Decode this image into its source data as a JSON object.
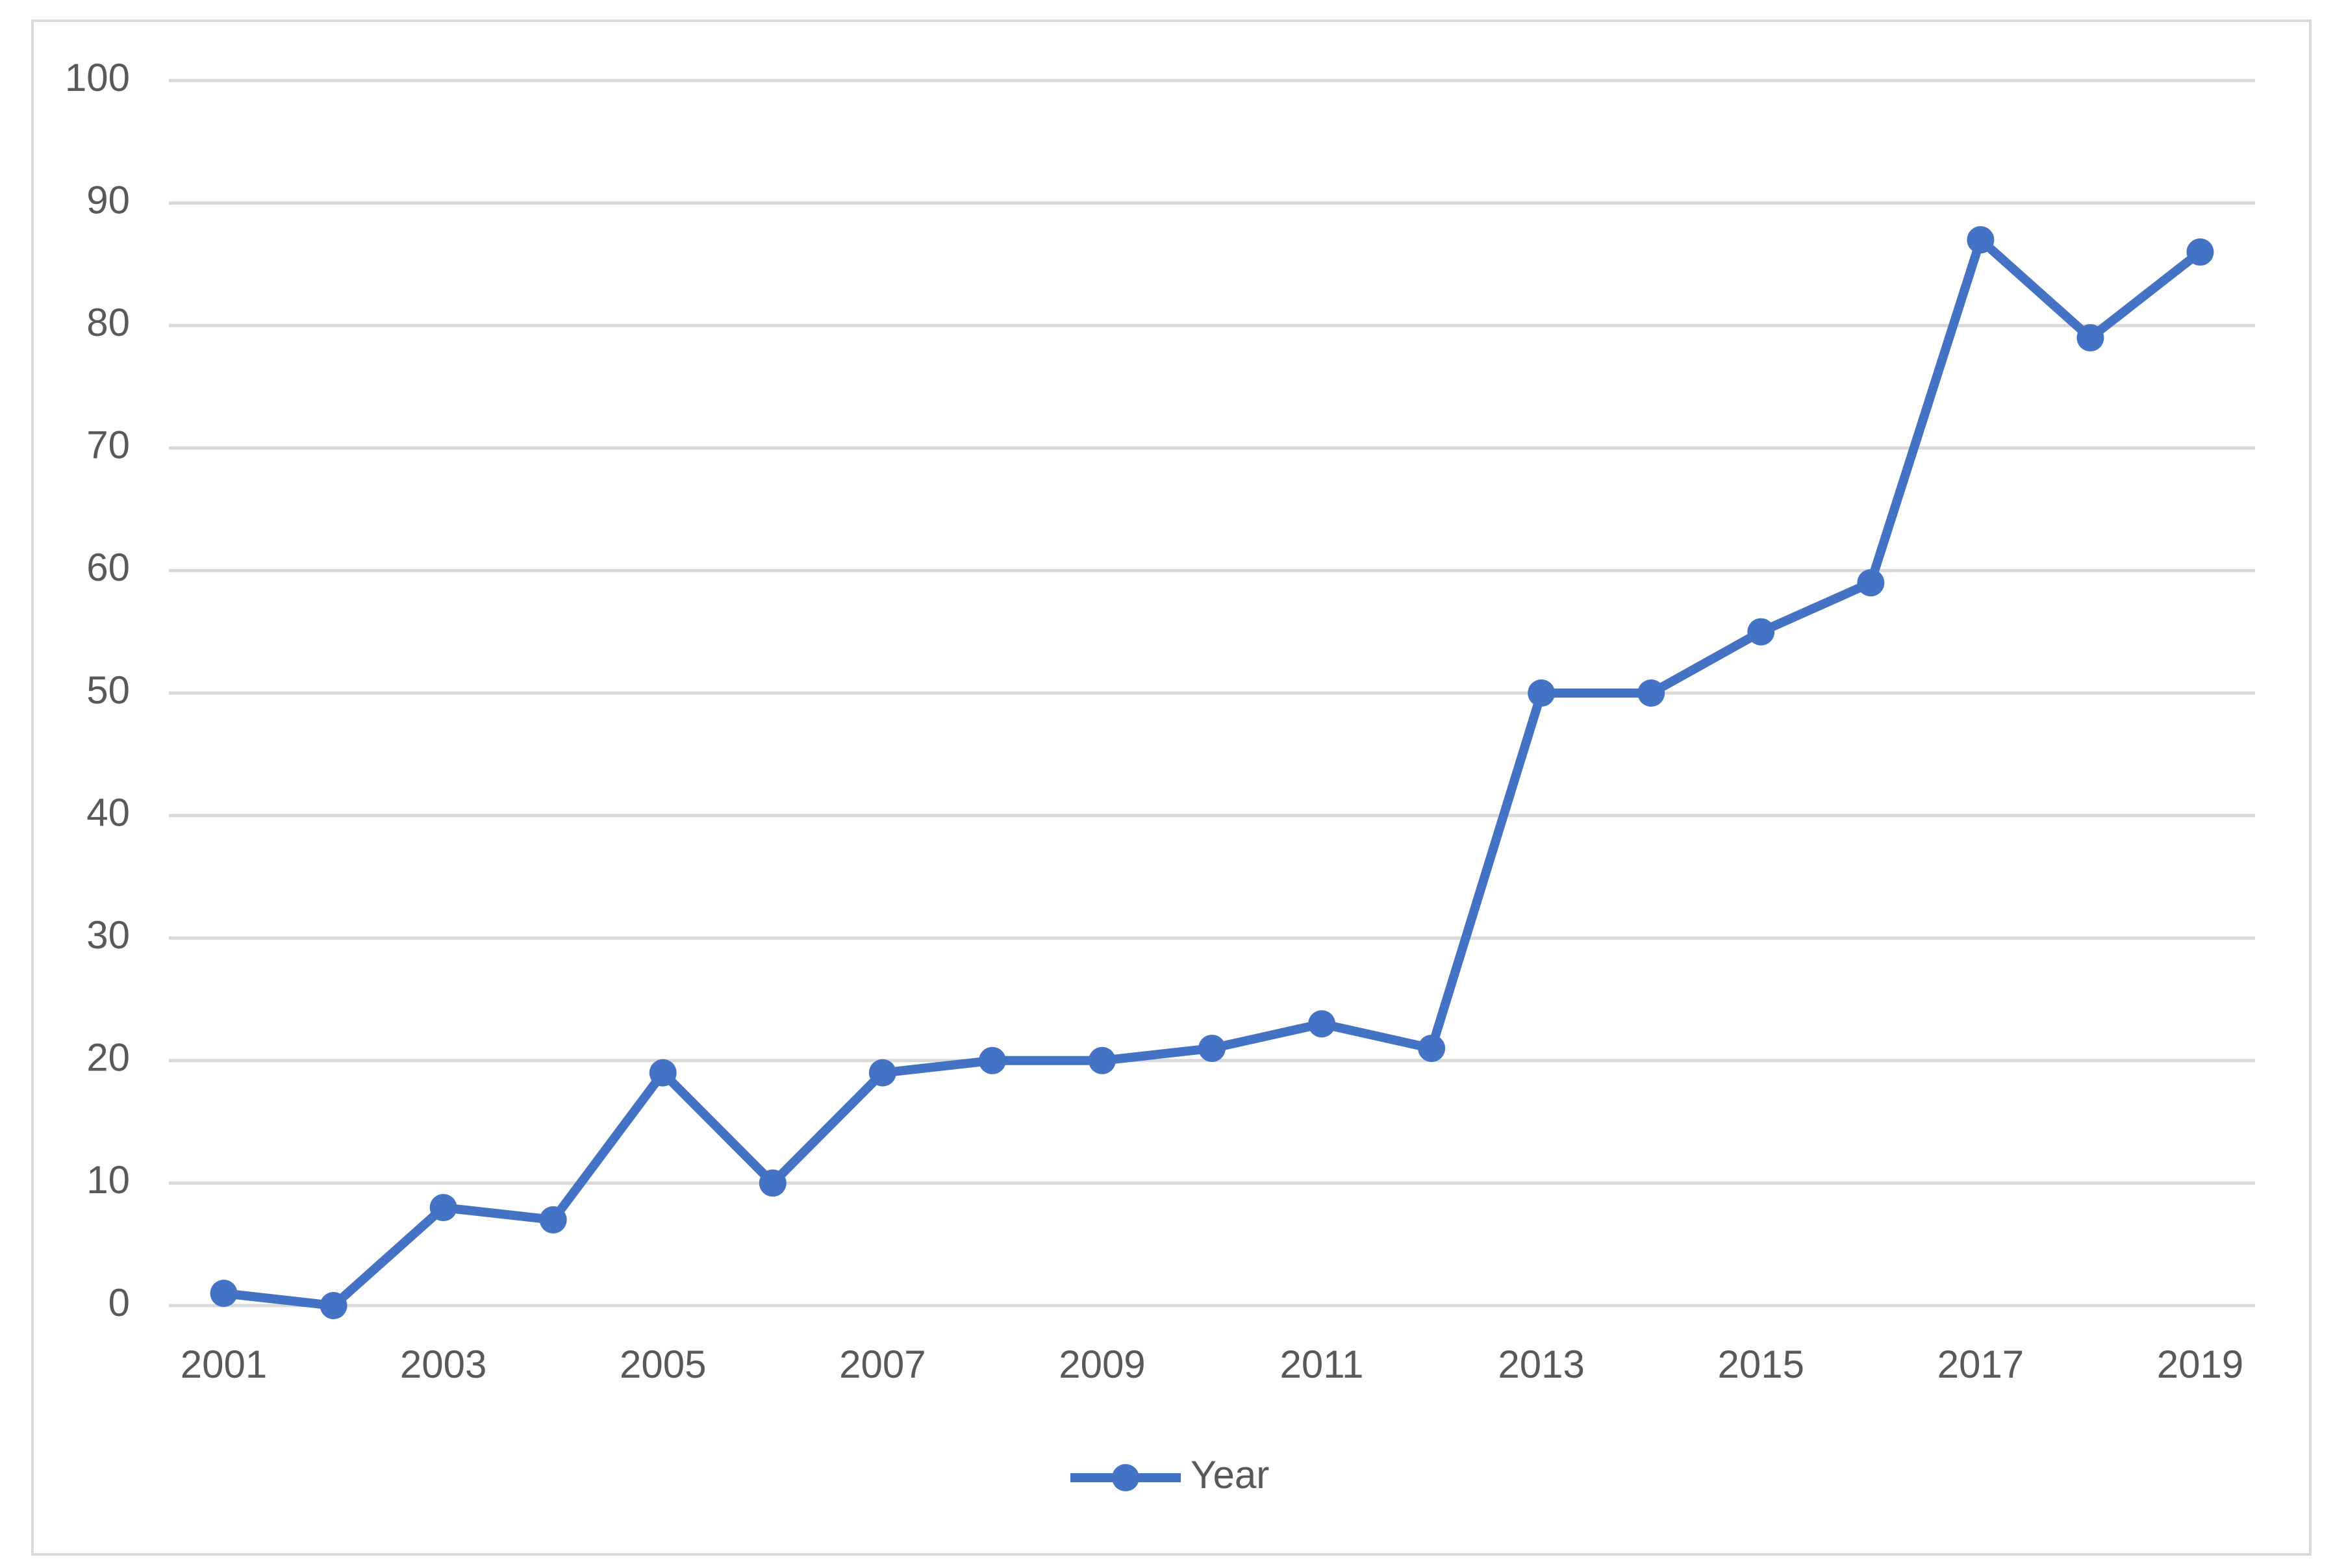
{
  "chart_data": {
    "type": "line",
    "categories": [
      2001,
      null,
      2003,
      null,
      2005,
      null,
      2007,
      null,
      2009,
      null,
      2011,
      null,
      2013,
      null,
      2015,
      null,
      2017,
      null,
      2019
    ],
    "series": [
      {
        "name": "Year",
        "color": "#4472c4",
        "values": [
          1,
          0,
          8,
          7,
          19,
          10,
          19,
          20,
          20,
          21,
          23,
          21,
          50,
          50,
          55,
          59,
          87,
          79,
          86
        ]
      }
    ],
    "ylim": [
      0,
      100
    ],
    "yticks": [
      0,
      10,
      20,
      30,
      40,
      50,
      60,
      70,
      80,
      90,
      100
    ],
    "grid": true,
    "legend": "bottom"
  }
}
